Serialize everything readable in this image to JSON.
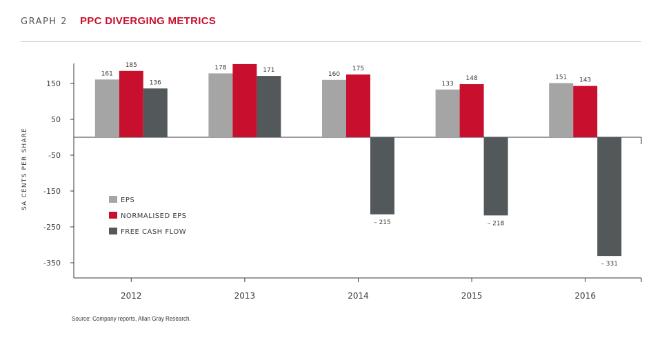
{
  "header": {
    "graph_label": "GRAPH 2",
    "title": "PPC DIVERGING METRICS"
  },
  "source": "Source: Company reports, Allan Gray Research.",
  "chart_data": {
    "type": "bar",
    "title": "PPC DIVERGING METRICS",
    "ylabel": "SA CENTS PER SHARE",
    "xlabel": "",
    "categories": [
      "2012",
      "2013",
      "2014",
      "2015",
      "2016"
    ],
    "yticks": [
      150,
      50,
      -50,
      -150,
      -250,
      -350
    ],
    "ytick_labels": [
      "150",
      "50",
      "-50",
      "-150",
      "-250",
      "-350"
    ],
    "ylim": [
      -390,
      210
    ],
    "legend_position": "left",
    "series": [
      {
        "name": "EPS",
        "color": "#a5a5a5",
        "values": [
          161,
          178,
          160,
          133,
          151
        ],
        "labels": [
          "161",
          "178",
          "160",
          "133",
          "151"
        ]
      },
      {
        "name": "NORMALISED EPS",
        "color": "#c8102e",
        "values": [
          185,
          204,
          175,
          148,
          143
        ],
        "labels": [
          "185",
          "",
          "175",
          "148",
          "143"
        ]
      },
      {
        "name": "FREE CASH FLOW",
        "color": "#53585b",
        "values": [
          136,
          171,
          -215,
          -218,
          -331
        ],
        "labels": [
          "136",
          "171",
          "– 215",
          "– 218",
          "– 331"
        ]
      }
    ]
  }
}
